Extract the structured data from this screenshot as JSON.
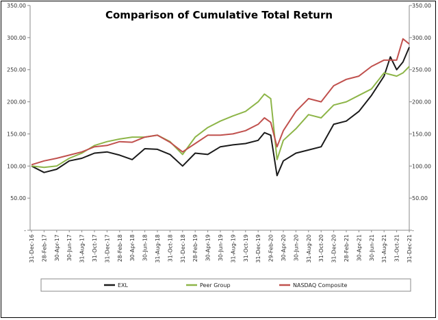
{
  "chart_data": {
    "type": "line",
    "title": "Comparison of Cumulative Total Return",
    "xlabel": "",
    "ylabel": "",
    "ylim": [
      0,
      350
    ],
    "y_ticks": [
      "-",
      "50.00",
      "100.00",
      "150.00",
      "200.00",
      "250.00",
      "300.00",
      "350.00"
    ],
    "y_tick_values": [
      0,
      50,
      100,
      150,
      200,
      250,
      300,
      350
    ],
    "x_unit": "months since 31-Dec-16",
    "x_tick_labels": [
      "31-Dec-16",
      "28-Feb-17",
      "30-Apr-17",
      "30-Jun-17",
      "31-Aug-17",
      "31-Oct-17",
      "31-Dec-17",
      "28-Feb-18",
      "30-Apr-18",
      "30-Jun-18",
      "31-Aug-18",
      "31-Oct-18",
      "31-Dec-18",
      "28-Feb-19",
      "30-Apr-19",
      "30-Jun-19",
      "31-Aug-19",
      "31-Oct-19",
      "31-Dec-19",
      "29-Feb-20",
      "30-Apr-20",
      "30-Jun-20",
      "31-Aug-20",
      "31-Oct-20",
      "31-Dec-20",
      "28-Feb-21",
      "30-Apr-21",
      "30-Jun-21",
      "31-Aug-21",
      "31-Oct-21",
      "31-Dec-21"
    ],
    "grid": false,
    "legend_position": "bottom",
    "series": [
      {
        "name": "EXL",
        "color": "#1a1a1a",
        "x": [
          0,
          2,
          4,
          6,
          8,
          10,
          12,
          14,
          16,
          18,
          20,
          22,
          24,
          26,
          28,
          30,
          32,
          34,
          36,
          37,
          38,
          39,
          40,
          42,
          44,
          46,
          48,
          50,
          52,
          54,
          56,
          57,
          58,
          59,
          60
        ],
        "y": [
          100,
          90,
          95,
          108,
          112,
          120,
          122,
          117,
          110,
          127,
          126,
          118,
          100,
          120,
          118,
          130,
          133,
          135,
          140,
          152,
          148,
          85,
          108,
          120,
          125,
          130,
          165,
          170,
          185,
          210,
          240,
          270,
          250,
          262,
          285
        ]
      },
      {
        "name": "Peer Group",
        "color": "#8db548",
        "x": [
          0,
          2,
          4,
          6,
          8,
          10,
          12,
          14,
          16,
          18,
          20,
          22,
          24,
          26,
          28,
          30,
          32,
          34,
          36,
          37,
          38,
          39,
          40,
          42,
          44,
          46,
          48,
          50,
          52,
          54,
          56,
          58,
          59,
          60
        ],
        "y": [
          100,
          98,
          100,
          112,
          120,
          132,
          138,
          142,
          145,
          145,
          148,
          138,
          118,
          145,
          160,
          170,
          178,
          185,
          200,
          212,
          205,
          110,
          140,
          158,
          180,
          175,
          195,
          200,
          210,
          220,
          245,
          240,
          245,
          255
        ]
      },
      {
        "name": "NASDAQ Composite",
        "color": "#c0504d",
        "x": [
          0,
          2,
          4,
          6,
          8,
          10,
          12,
          14,
          16,
          18,
          20,
          22,
          24,
          26,
          28,
          30,
          32,
          34,
          36,
          37,
          38,
          39,
          40,
          42,
          44,
          46,
          48,
          50,
          52,
          54,
          56,
          58,
          59,
          60
        ],
        "y": [
          102,
          108,
          112,
          117,
          122,
          130,
          132,
          138,
          137,
          145,
          148,
          137,
          122,
          135,
          148,
          148,
          150,
          155,
          165,
          175,
          168,
          130,
          155,
          185,
          205,
          200,
          225,
          235,
          240,
          255,
          265,
          265,
          298,
          290
        ]
      }
    ]
  }
}
